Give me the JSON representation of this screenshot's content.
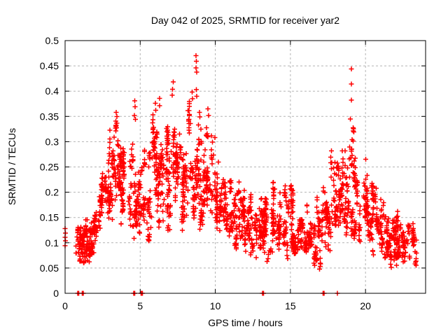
{
  "chart_data": {
    "type": "scatter",
    "title": "Day 042 of 2025, SRMTID for receiver yar2",
    "xlabel": "GPS time / hours",
    "ylabel": "SRMTID / TECUs",
    "xlim": [
      0,
      24
    ],
    "ylim": [
      0,
      0.5
    ],
    "xticks": {
      "values": [
        0,
        5,
        10,
        15,
        20
      ],
      "labels": [
        "0",
        "5",
        "10",
        "15",
        "20"
      ]
    },
    "yticks": {
      "values": [
        0,
        0.05,
        0.1,
        0.15,
        0.2,
        0.25,
        0.3,
        0.35,
        0.4,
        0.45,
        0.5
      ],
      "labels": [
        "0",
        "0.05",
        "0.1",
        "0.15",
        "0.2",
        "0.25",
        "0.3",
        "0.35",
        "0.4",
        "0.45",
        "0.5"
      ]
    },
    "grid": {
      "show": true,
      "color": "#b4b4b4",
      "dash": "3,3"
    },
    "border_color": "#000000",
    "background": "#ffffff",
    "marker": {
      "shape": "plus",
      "color": "#ff0000",
      "size": 7,
      "stroke_width": 1.5
    },
    "legend": {
      "show": false
    },
    "series": [
      {
        "name": "SRMTID",
        "seed": 1337,
        "points_explicit": [
          [
            0.0,
            0.128
          ],
          [
            0.02,
            0.119
          ],
          [
            0.0,
            0.111
          ],
          [
            0.03,
            0.104
          ],
          [
            0.01,
            0.094
          ],
          [
            3.4,
            0.358
          ],
          [
            3.44,
            0.35
          ],
          [
            3.37,
            0.341
          ],
          [
            4.63,
            0.381
          ],
          [
            4.66,
            0.369
          ],
          [
            4.61,
            0.352
          ],
          [
            4.68,
            0.344
          ],
          [
            6.0,
            0.376
          ],
          [
            6.03,
            0.362
          ],
          [
            6.3,
            0.386
          ],
          [
            6.28,
            0.371
          ],
          [
            7.13,
            0.392
          ],
          [
            7.16,
            0.404
          ],
          [
            7.19,
            0.418
          ],
          [
            8.45,
            0.398
          ],
          [
            8.48,
            0.385
          ],
          [
            8.71,
            0.47
          ],
          [
            8.74,
            0.459
          ],
          [
            8.72,
            0.446
          ],
          [
            8.76,
            0.438
          ],
          [
            8.73,
            0.403
          ],
          [
            8.75,
            0.39
          ],
          [
            9.5,
            0.365
          ],
          [
            9.55,
            0.352
          ],
          [
            19.05,
            0.444
          ],
          [
            19.07,
            0.414
          ],
          [
            19.05,
            0.382
          ],
          [
            19.0,
            0.345
          ]
        ],
        "zero_points": [
          [
            0.85,
            0
          ],
          [
            0.9,
            0
          ],
          [
            1.15,
            0
          ],
          [
            1.21,
            0
          ],
          [
            4.57,
            0
          ],
          [
            4.63,
            0
          ],
          [
            5.05,
            0
          ],
          [
            5.1,
            0
          ],
          [
            5.15,
            0
          ],
          [
            13.15,
            0
          ],
          [
            13.22,
            0
          ],
          [
            17.18,
            0
          ],
          [
            17.24,
            0
          ],
          [
            18.12,
            0
          ]
        ],
        "density_bins": [
          [
            0.75,
            1.2,
            60,
            0.055,
            0.155,
            0.1
          ],
          [
            1.2,
            1.7,
            70,
            0.055,
            0.165,
            0.105
          ],
          [
            1.7,
            2.2,
            55,
            0.07,
            0.18,
            0.12
          ],
          [
            2.2,
            2.7,
            50,
            0.09,
            0.27,
            0.16
          ],
          [
            2.7,
            3.2,
            55,
            0.12,
            0.33,
            0.2
          ],
          [
            3.2,
            3.7,
            60,
            0.13,
            0.345,
            0.21
          ],
          [
            3.7,
            4.2,
            55,
            0.13,
            0.345,
            0.2
          ],
          [
            4.2,
            4.7,
            40,
            0.1,
            0.34,
            0.19
          ],
          [
            4.7,
            5.2,
            50,
            0.08,
            0.31,
            0.17
          ],
          [
            5.2,
            5.7,
            50,
            0.1,
            0.3,
            0.18
          ],
          [
            5.7,
            6.2,
            55,
            0.12,
            0.36,
            0.2
          ],
          [
            6.2,
            6.7,
            55,
            0.12,
            0.34,
            0.21
          ],
          [
            6.7,
            7.2,
            60,
            0.12,
            0.375,
            0.22
          ],
          [
            7.2,
            7.7,
            60,
            0.13,
            0.38,
            0.24
          ],
          [
            7.7,
            8.2,
            55,
            0.12,
            0.36,
            0.22
          ],
          [
            8.2,
            8.7,
            55,
            0.13,
            0.38,
            0.22
          ],
          [
            8.7,
            9.2,
            55,
            0.12,
            0.41,
            0.22
          ],
          [
            9.2,
            9.7,
            55,
            0.12,
            0.345,
            0.22
          ],
          [
            9.7,
            10.2,
            50,
            0.1,
            0.33,
            0.19
          ],
          [
            10.2,
            10.7,
            45,
            0.1,
            0.27,
            0.16
          ],
          [
            10.7,
            11.2,
            45,
            0.09,
            0.23,
            0.15
          ],
          [
            11.2,
            11.7,
            45,
            0.08,
            0.23,
            0.14
          ],
          [
            11.7,
            12.2,
            50,
            0.07,
            0.22,
            0.13
          ],
          [
            12.2,
            12.7,
            50,
            0.06,
            0.2,
            0.12
          ],
          [
            12.7,
            13.2,
            55,
            0.05,
            0.235,
            0.12
          ],
          [
            13.2,
            13.7,
            50,
            0.06,
            0.22,
            0.12
          ],
          [
            13.7,
            14.2,
            50,
            0.05,
            0.22,
            0.12
          ],
          [
            14.2,
            14.7,
            50,
            0.05,
            0.22,
            0.12
          ],
          [
            14.7,
            15.2,
            50,
            0.06,
            0.22,
            0.12
          ],
          [
            15.2,
            15.7,
            45,
            0.06,
            0.21,
            0.115
          ],
          [
            15.7,
            16.2,
            45,
            0.06,
            0.175,
            0.11
          ],
          [
            16.2,
            16.7,
            45,
            0.05,
            0.175,
            0.11
          ],
          [
            16.7,
            17.2,
            45,
            0.04,
            0.22,
            0.12
          ],
          [
            17.2,
            17.7,
            50,
            0.08,
            0.28,
            0.14
          ],
          [
            17.7,
            18.2,
            50,
            0.09,
            0.31,
            0.15
          ],
          [
            18.2,
            18.7,
            50,
            0.1,
            0.31,
            0.17
          ],
          [
            18.7,
            19.2,
            55,
            0.1,
            0.33,
            0.19
          ],
          [
            19.2,
            19.7,
            55,
            0.1,
            0.31,
            0.18
          ],
          [
            19.7,
            20.2,
            50,
            0.09,
            0.28,
            0.16
          ],
          [
            20.2,
            20.7,
            50,
            0.07,
            0.22,
            0.13
          ],
          [
            20.7,
            21.2,
            50,
            0.06,
            0.2,
            0.12
          ],
          [
            21.2,
            21.7,
            55,
            0.05,
            0.18,
            0.11
          ],
          [
            21.7,
            22.2,
            55,
            0.045,
            0.18,
            0.105
          ],
          [
            22.2,
            22.7,
            50,
            0.045,
            0.16,
            0.1
          ],
          [
            22.7,
            23.35,
            45,
            0.05,
            0.155,
            0.1
          ]
        ]
      }
    ]
  }
}
